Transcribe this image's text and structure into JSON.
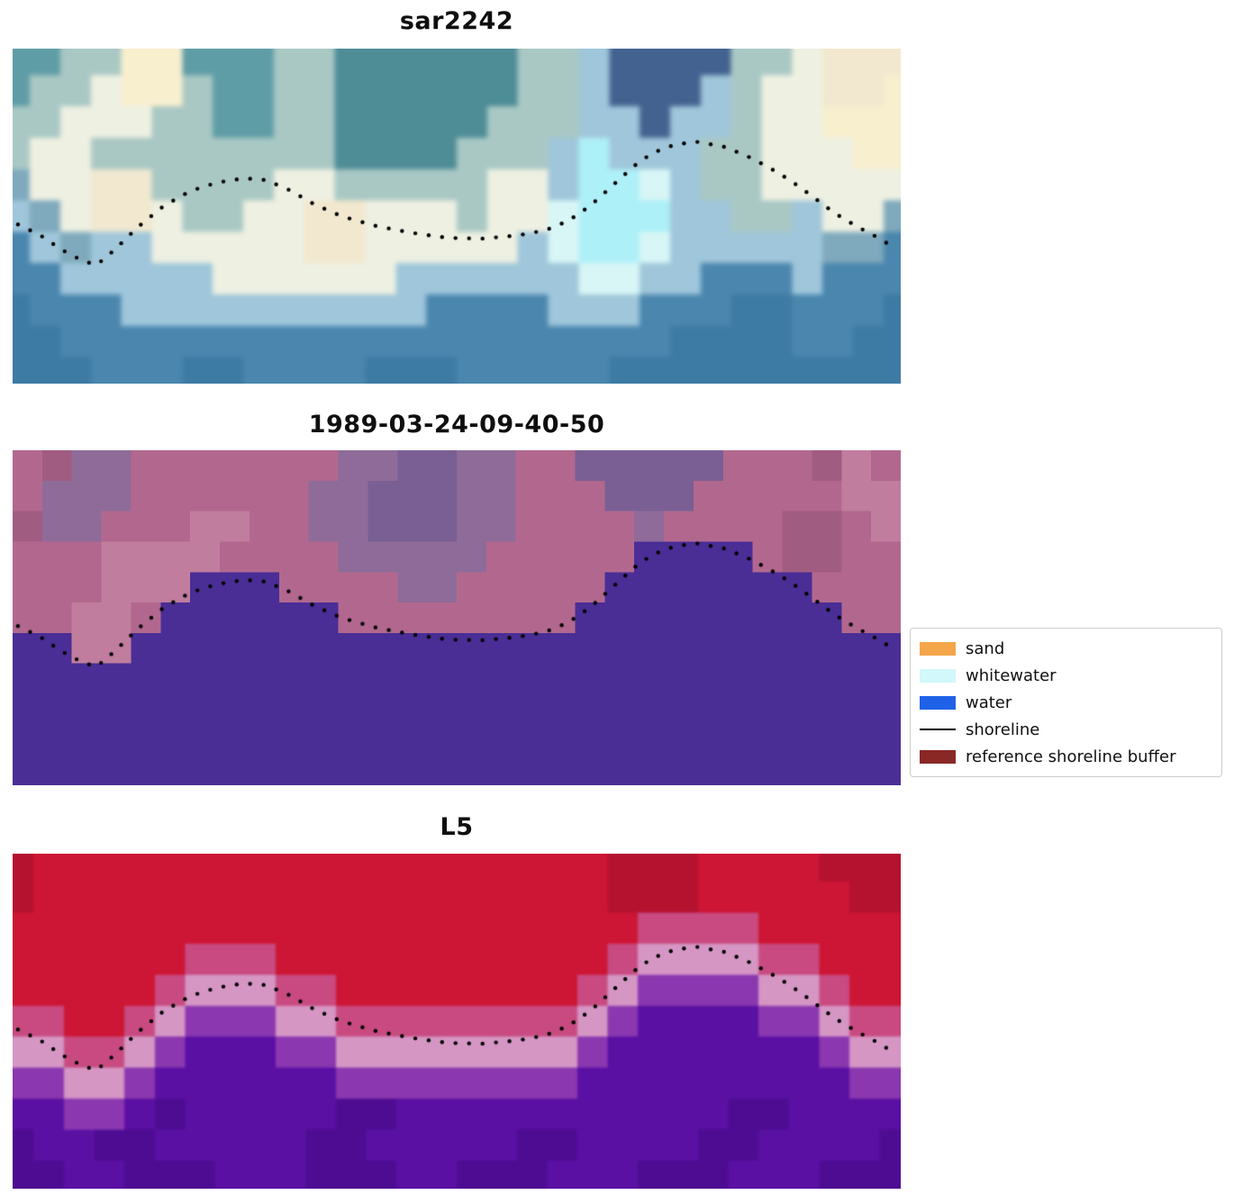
{
  "figure": {
    "background": "#ffffff"
  },
  "chart_data": {
    "type": "heatmap",
    "description": "Three stacked satellite image panels with a dotted detected shoreline over each; classification legend at right.",
    "panels": [
      {
        "title": "sar2242",
        "grid_cols": 30,
        "grid_rows": 11,
        "palette": {
          "T": "#5f9da6",
          "t": "#4e8c96",
          "G": "#a9c8c4",
          "L": "#9fc6da",
          "W": "#eef0e2",
          "C": "#f2e8cf",
          "Y": "#f8efcf",
          "Q": "#aef0f8",
          "q": "#d8f6f6",
          "B": "#4a86ae",
          "b": "#3d7aa4",
          "D": "#44628f",
          "P": "#7fa9bc"
        },
        "rows": [
          "TTGGYYTTTGGttttttGGLDDDDGGWCCC",
          "TGGWYYGTTGGttttttGGLDDDLGWWCCY",
          "GGWWWGGTTGGtttttGGGLLDLLGWWYYY",
          "GWWGGGGGGGGttttGGGLQLLLGGWWWYY",
          "PWWCCGGGGWWGGGGGWWLQQqLGGWWWWW",
          "LPWCCWGGWWCCWWWGWWqQQQLLGGLWWP",
          "BLPLLWWWWWCCWWWWWLqQQqLLLLLPPB",
          "BBLLLLLWWWWWWLLLLLLqqLLBBBLBBB",
          "bBBBLLLLLLLLLLBBBBLLLBBBbbBBBb",
          "bbBBBBBBBBBBBBBBBBBBBBbbbbBBbb",
          "bbbBBBbbBBBBbbbBBBBBbbbbbbbbbb"
        ]
      },
      {
        "title": "1989-03-24-09-40-50",
        "grid_cols": 30,
        "grid_rows": 11,
        "palette": {
          "M": "#b2688e",
          "m": "#a15c82",
          "V": "#8f6b99",
          "v": "#7a5f94",
          "R": "#c07d9d",
          "W": "#4a2e96"
        },
        "rows": [
          "MmVVMMMMMMMVVvvVVMMvvvvvMMMmRM",
          "MVVVMMMMMMVVvvvVVMMMvvvMMMMMRR",
          "mVVMMMRRMMVVvvvVVMMMMVMMMMmmMR",
          "MMMRRRRMMMMVVVVVMMMMMWWWWMmmMM",
          "MMMRRRWWWMMMMVVMMMMMWWWWWWWMMM",
          "MMRRMWWWWWWMMMMMMMMWWWWWWWWWMM",
          "WWRRWWWWWWWWWWWWWWWWWWWWWWWWWW",
          "WWWWWWWWWWWWWWWWWWWWWWWWWWWWWW",
          "WWWWWWWWWWWWWWWWWWWWWWWWWWWWWW",
          "WWWWWWWWWWWWWWWWWWWWWWWWWWWWWW",
          "WWWWWWWWWWWWWWWWWWWWWWWWWWWWWW"
        ]
      },
      {
        "title": "L5",
        "grid_cols": 30,
        "grid_rows": 11,
        "palette": {
          "R": "#cd1535",
          "r": "#b51230",
          "p": "#c84a80",
          "P": "#d596c4",
          "V": "#8b37af",
          "U": "#5a10a3",
          "u": "#4d0c92"
        },
        "rows": [
          "rRRRRRRRRRRRRRRRRRRRrrrRRRRrrr",
          "rRRRRRRRRRRRRRRRRRRRrrrRRRRRrr",
          "RRRRRRRRRRRRRRRRRRRRRppppRRRRR",
          "RRRRRRpppRRRRRRRRRRRpPPPPppRRR",
          "RRRRRpPPPppRRRRRRRRpPVVVVPPpRR",
          "ppRRpPVVVPPppppppppPVUUUUVVPpp",
          "PPppPVUUUVVPPPPPPPPVUUUUUUUVPP",
          "VVPPVUUUUUUVVVVVVVVUUUUUUUUUVV",
          "UUVVUuUUUUUuuUUUUUUUUUUUuuUUUU",
          "uUUuuUUUUUuuUUUUUuuUUUUuuUUUUu",
          "uuUUuuuUUUuuuUUuuuUUUuuuUUUuuu"
        ]
      }
    ],
    "shoreline": {
      "style": "dotted",
      "color": "#000000",
      "dot_radius": 2.2,
      "dot_spacing_px": 15,
      "points_normalized": [
        [
          0.006,
          0.525
        ],
        [
          0.03,
          0.555
        ],
        [
          0.055,
          0.6
        ],
        [
          0.08,
          0.635
        ],
        [
          0.095,
          0.645
        ],
        [
          0.115,
          0.6
        ],
        [
          0.14,
          0.535
        ],
        [
          0.17,
          0.47
        ],
        [
          0.2,
          0.425
        ],
        [
          0.23,
          0.4
        ],
        [
          0.26,
          0.387
        ],
        [
          0.285,
          0.392
        ],
        [
          0.31,
          0.42
        ],
        [
          0.34,
          0.465
        ],
        [
          0.37,
          0.5
        ],
        [
          0.41,
          0.53
        ],
        [
          0.45,
          0.55
        ],
        [
          0.49,
          0.565
        ],
        [
          0.53,
          0.567
        ],
        [
          0.57,
          0.557
        ],
        [
          0.6,
          0.542
        ],
        [
          0.625,
          0.515
        ],
        [
          0.65,
          0.47
        ],
        [
          0.675,
          0.41
        ],
        [
          0.7,
          0.35
        ],
        [
          0.72,
          0.312
        ],
        [
          0.745,
          0.287
        ],
        [
          0.77,
          0.278
        ],
        [
          0.8,
          0.292
        ],
        [
          0.825,
          0.318
        ],
        [
          0.85,
          0.352
        ],
        [
          0.875,
          0.392
        ],
        [
          0.9,
          0.44
        ],
        [
          0.925,
          0.49
        ],
        [
          0.95,
          0.53
        ],
        [
          0.975,
          0.565
        ],
        [
          0.995,
          0.598
        ]
      ]
    },
    "legend": {
      "position": "right-middle",
      "entries": [
        {
          "label": "sand",
          "type": "patch",
          "color": "#f5a54a"
        },
        {
          "label": "whitewater",
          "type": "patch",
          "color": "#d2f8fb"
        },
        {
          "label": "water",
          "type": "patch",
          "color": "#1f62e8"
        },
        {
          "label": "shoreline",
          "type": "line",
          "color": "#000000"
        },
        {
          "label": "reference shoreline buffer",
          "type": "patch",
          "color": "#8a2826"
        }
      ]
    }
  }
}
